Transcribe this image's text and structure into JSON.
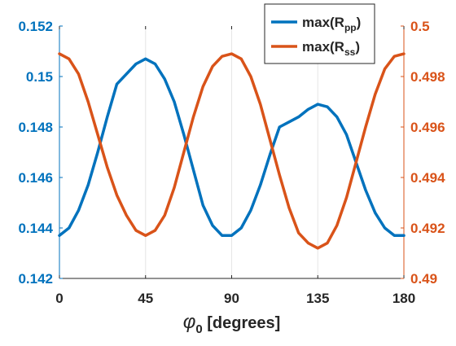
{
  "chart_data": {
    "type": "line",
    "xlabel": "φ0 [degrees]",
    "xlabel_parts": {
      "symbol": "φ",
      "subscript": "0",
      "unit": " [degrees]"
    },
    "xlim": [
      0,
      180
    ],
    "xticks": [
      0,
      45,
      90,
      135,
      180
    ],
    "xtick_labels": [
      "0",
      "45",
      "90",
      "135",
      "180"
    ],
    "grid": "vertical",
    "legend_position": "top-right",
    "left_axis": {
      "ylim": [
        0.142,
        0.152
      ],
      "ticks": [
        0.142,
        0.144,
        0.146,
        0.148,
        0.15,
        0.152
      ],
      "tick_labels": [
        "0.142",
        "0.144",
        "0.146",
        "0.148",
        "0.15",
        "0.152"
      ],
      "color": "#0072BD"
    },
    "right_axis": {
      "ylim": [
        0.49,
        0.5
      ],
      "ticks": [
        0.49,
        0.492,
        0.494,
        0.496,
        0.498,
        0.5
      ],
      "tick_labels": [
        "0.49",
        "0.492",
        "0.494",
        "0.496",
        "0.498",
        "0.5"
      ],
      "color": "#D95319"
    },
    "x": [
      0,
      5,
      10,
      15,
      20,
      25,
      30,
      35,
      40,
      45,
      50,
      55,
      60,
      65,
      70,
      75,
      80,
      85,
      90,
      95,
      100,
      105,
      110,
      115,
      120,
      125,
      130,
      135,
      140,
      145,
      150,
      155,
      160,
      165,
      170,
      175,
      180
    ],
    "series": [
      {
        "name": "max(Rpp)",
        "legend": {
          "base": "max(R",
          "sub": "pp",
          "close": ")"
        },
        "axis": "left",
        "color": "#0072BD",
        "values": [
          0.1437,
          0.144,
          0.1447,
          0.1457,
          0.147,
          0.1484,
          0.1497,
          0.1501,
          0.1505,
          0.1507,
          0.1505,
          0.1499,
          0.149,
          0.1477,
          0.1463,
          0.1449,
          0.1441,
          0.1437,
          0.1437,
          0.144,
          0.1447,
          0.1457,
          0.1469,
          0.148,
          0.1482,
          0.1484,
          0.1487,
          0.1489,
          0.1488,
          0.1484,
          0.1477,
          0.1466,
          0.1455,
          0.1446,
          0.144,
          0.1437,
          0.1437
        ]
      },
      {
        "name": "max(Rss)",
        "legend": {
          "base": "max(R",
          "sub": "ss",
          "close": ")"
        },
        "axis": "right",
        "color": "#D95319",
        "values": [
          0.4989,
          0.4987,
          0.4981,
          0.497,
          0.4957,
          0.4944,
          0.4933,
          0.4925,
          0.4919,
          0.4917,
          0.4919,
          0.4925,
          0.4936,
          0.495,
          0.4964,
          0.4976,
          0.4984,
          0.4988,
          0.4989,
          0.4987,
          0.498,
          0.4969,
          0.4955,
          0.4941,
          0.4928,
          0.4918,
          0.4914,
          0.4912,
          0.4914,
          0.4921,
          0.4932,
          0.4946,
          0.496,
          0.4973,
          0.4983,
          0.4988,
          0.4989
        ]
      }
    ]
  }
}
